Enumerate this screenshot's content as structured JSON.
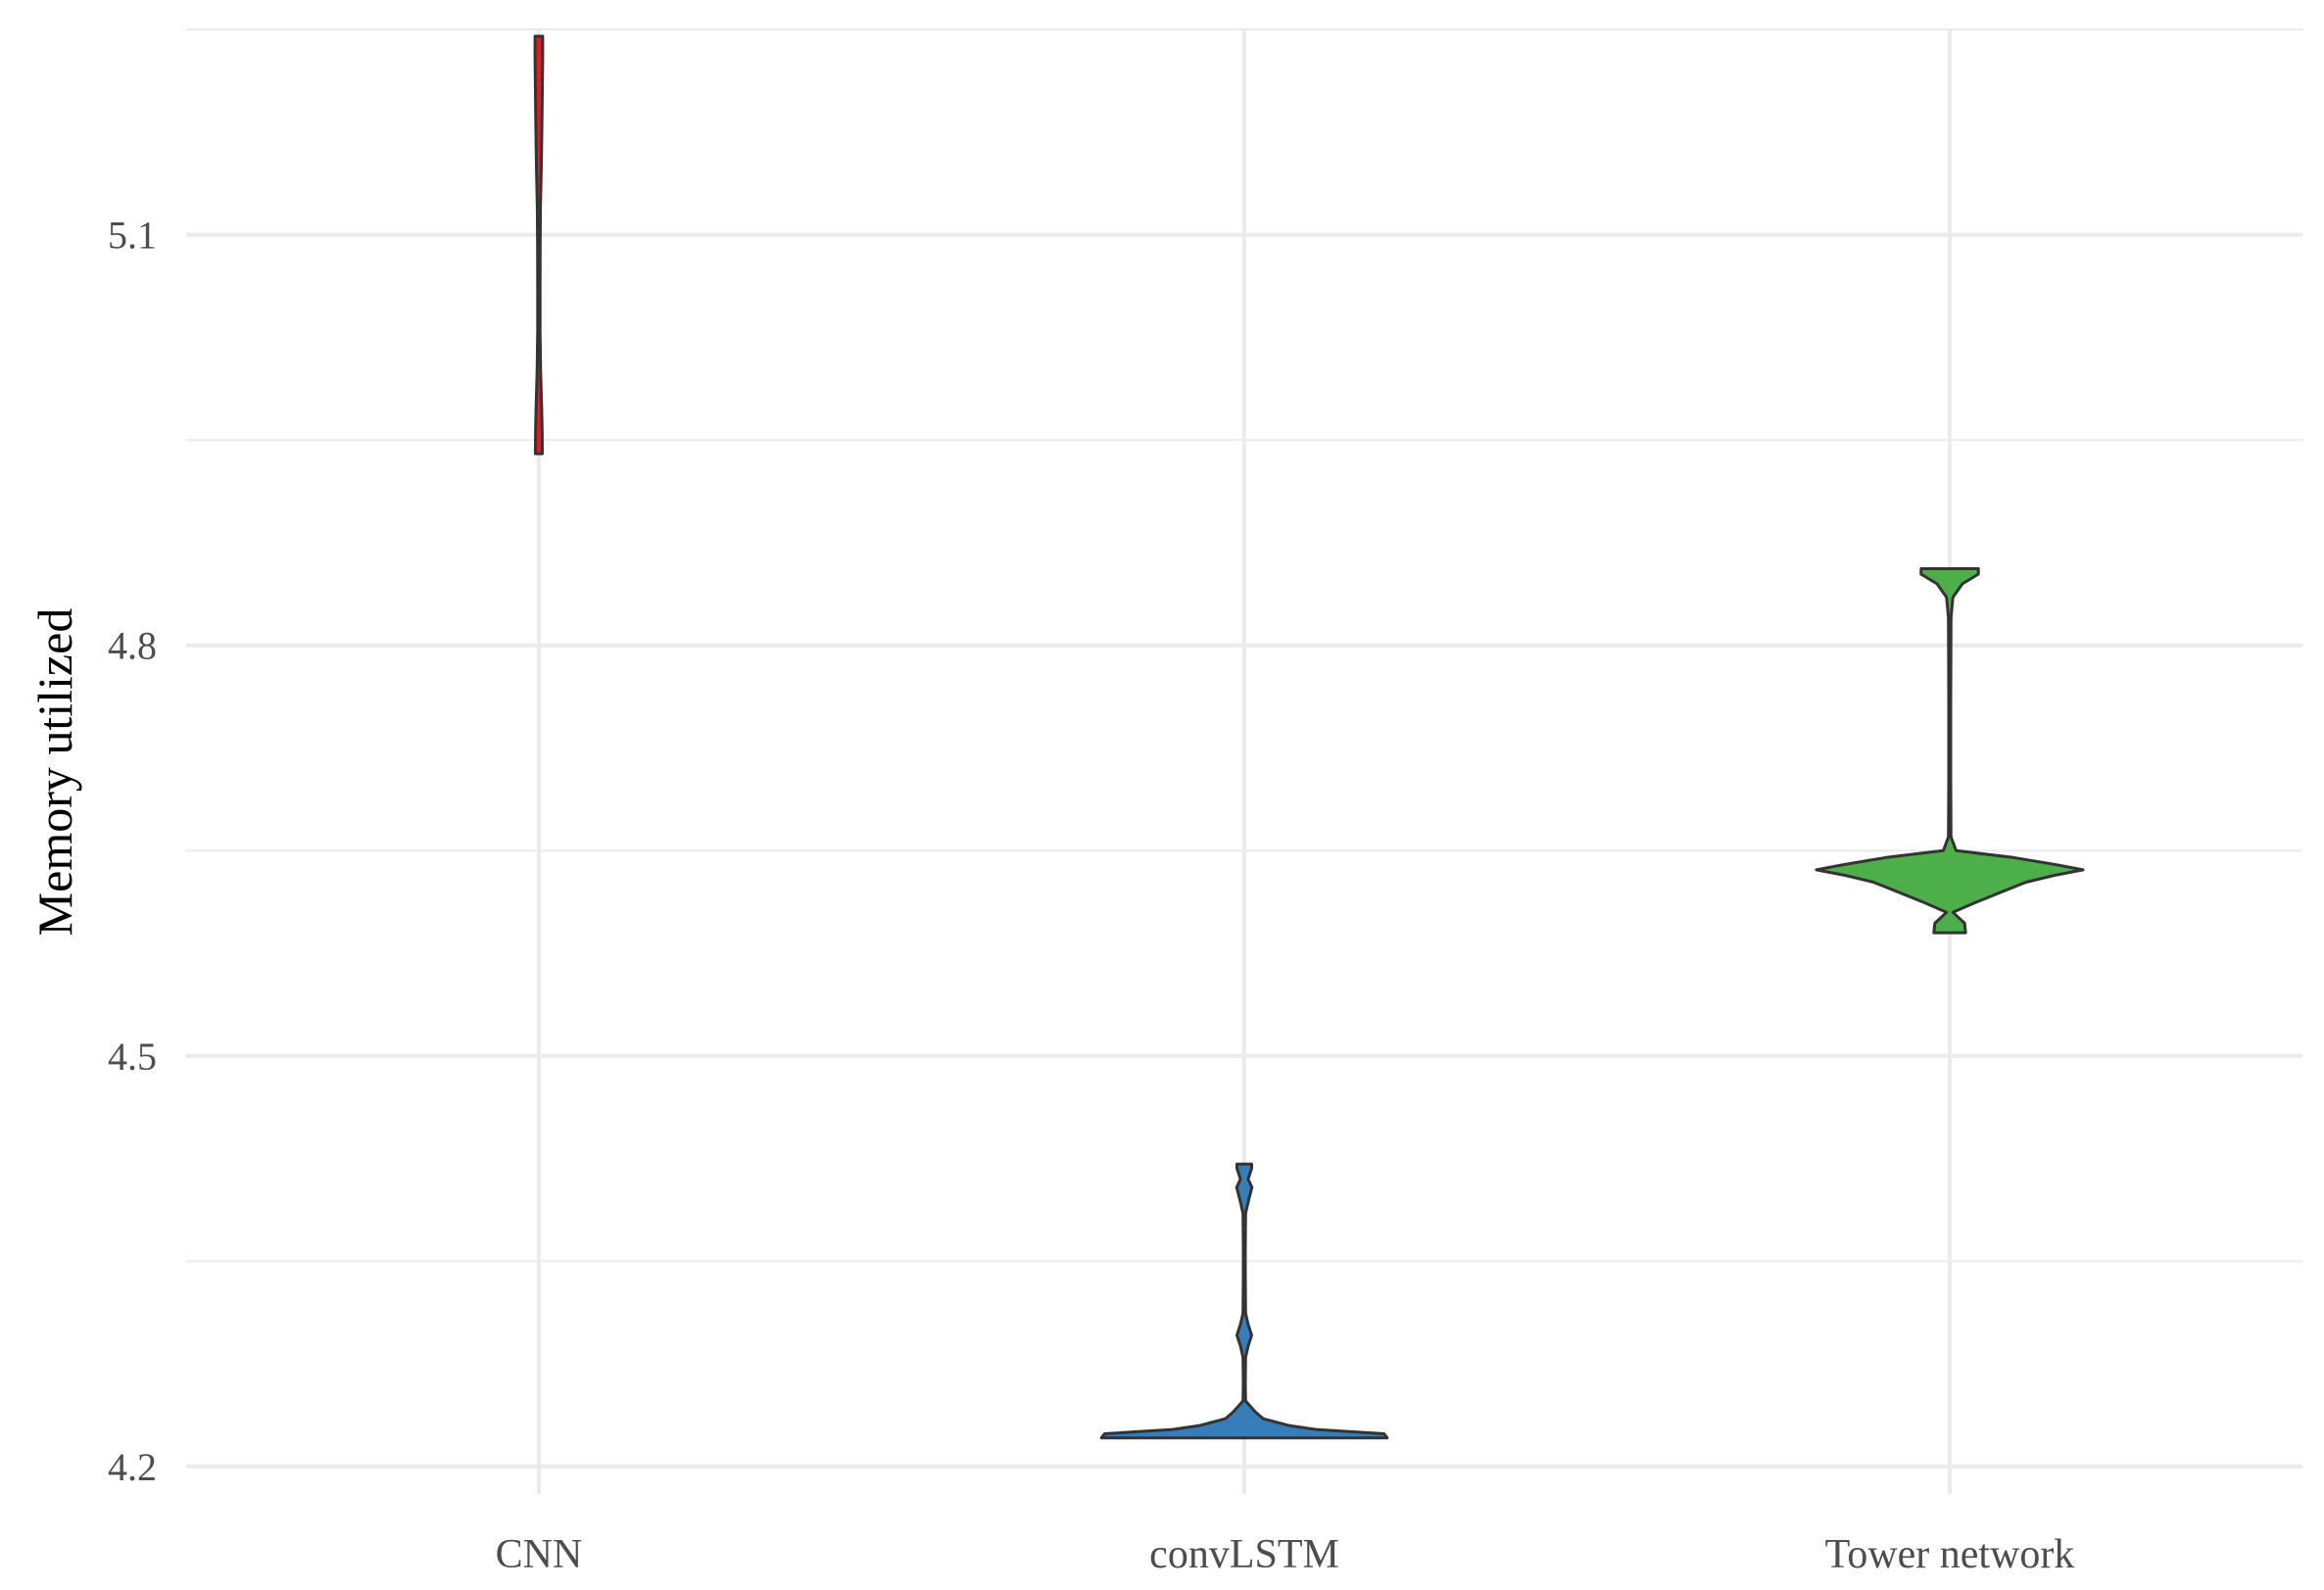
{
  "chart_data": {
    "type": "violin",
    "title": "",
    "xlabel": "",
    "ylabel": "Memory utilized",
    "categories": [
      "CNN",
      "convLSTM",
      "Tower network"
    ],
    "ylim": [
      4.18,
      5.25
    ],
    "yticks": [
      4.2,
      4.5,
      4.8,
      5.1
    ],
    "grid": true,
    "legend": "none",
    "colors": [
      "#e41a1c",
      "#377eb8",
      "#4daf4a"
    ],
    "outline_color": "#333333",
    "violins": [
      {
        "category": "CNN",
        "profile": [
          [
            4.94,
            0.0107
          ],
          [
            4.955,
            0.0105
          ],
          [
            4.975,
            0.0085
          ],
          [
            5.0,
            0.0055
          ],
          [
            5.03,
            0.0038
          ],
          [
            5.06,
            0.0038
          ],
          [
            5.09,
            0.0039
          ],
          [
            5.12,
            0.0048
          ],
          [
            5.15,
            0.0078
          ],
          [
            5.18,
            0.0095
          ],
          [
            5.21,
            0.011
          ],
          [
            5.23,
            0.012
          ],
          [
            5.245,
            0.012
          ]
        ]
      },
      {
        "category": "convLSTM",
        "profile": [
          [
            4.221,
            0.45
          ],
          [
            4.224,
            0.44
          ],
          [
            4.227,
            0.23
          ],
          [
            4.23,
            0.14
          ],
          [
            4.235,
            0.06
          ],
          [
            4.24,
            0.035
          ],
          [
            4.248,
            0.004
          ],
          [
            4.26,
            0.003
          ],
          [
            4.28,
            0.004
          ],
          [
            4.288,
            0.012
          ],
          [
            4.296,
            0.023
          ],
          [
            4.304,
            0.012
          ],
          [
            4.312,
            0.004
          ],
          [
            4.34,
            0.003
          ],
          [
            4.36,
            0.003
          ],
          [
            4.385,
            0.004
          ],
          [
            4.395,
            0.014
          ],
          [
            4.404,
            0.024
          ],
          [
            4.41,
            0.012
          ],
          [
            4.418,
            0.023
          ],
          [
            4.421,
            0.023
          ]
        ]
      },
      {
        "category": "Tower network",
        "profile": [
          [
            4.59,
            0.05
          ],
          [
            4.597,
            0.047
          ],
          [
            4.605,
            0.01
          ],
          [
            4.612,
            0.08
          ],
          [
            4.62,
            0.165
          ],
          [
            4.627,
            0.24
          ],
          [
            4.632,
            0.33
          ],
          [
            4.636,
            0.42
          ],
          [
            4.64,
            0.33
          ],
          [
            4.645,
            0.2
          ],
          [
            4.65,
            0.02
          ],
          [
            4.66,
            0.004
          ],
          [
            4.7,
            0.003
          ],
          [
            4.76,
            0.003
          ],
          [
            4.82,
            0.004
          ],
          [
            4.835,
            0.01
          ],
          [
            4.845,
            0.04
          ],
          [
            4.852,
            0.09
          ],
          [
            4.856,
            0.09
          ]
        ]
      }
    ]
  }
}
